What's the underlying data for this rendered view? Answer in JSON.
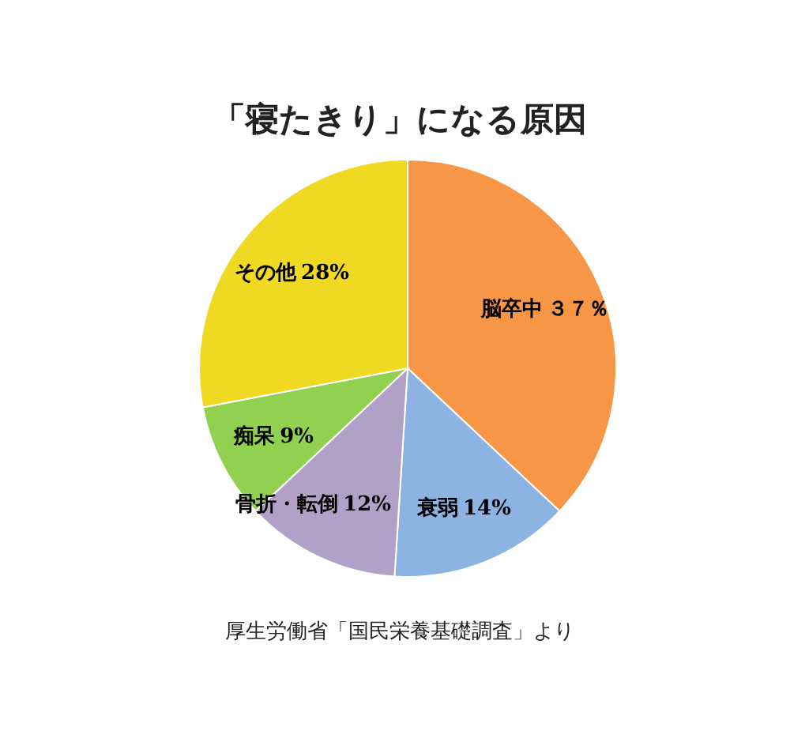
{
  "chart_data": {
    "type": "pie",
    "title": "「寝たきり」になる原因",
    "categories": [
      "脳卒中",
      "衰弱",
      "骨折・転倒",
      "痴呆",
      "その他"
    ],
    "values": [
      37,
      14,
      12,
      9,
      28
    ],
    "value_labels": [
      "３７％",
      "14%",
      "12%",
      "9%",
      "28%"
    ],
    "colors": [
      "#f79646",
      "#8db3e2",
      "#b2a1c7",
      "#92d050",
      "#efd923"
    ],
    "annotations": [
      "厚生労働省「国民栄養基礎調査」より"
    ],
    "legend": false
  }
}
